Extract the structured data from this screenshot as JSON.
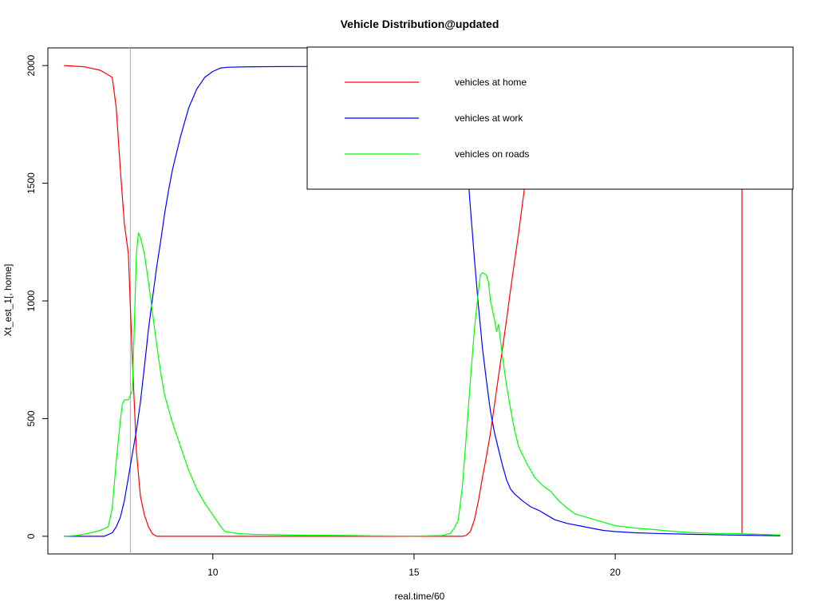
{
  "chart_data": {
    "type": "line",
    "title": "Vehicle Distribution@updated",
    "xlabel": "real.time/60",
    "ylabel": "Xt_est_1[, home]",
    "xlim": [
      5.9,
      24.4
    ],
    "ylim": [
      -75,
      2075
    ],
    "xticks": [
      10,
      15,
      20
    ],
    "yticks": [
      0,
      500,
      1000,
      1500,
      2000
    ],
    "grid": false,
    "legend_position": "top-right",
    "vline_x": 7.95,
    "series": [
      {
        "name": "vehicles at home",
        "color": "#ff0000",
        "points": [
          [
            6.3,
            2000
          ],
          [
            6.8,
            1995
          ],
          [
            7.2,
            1980
          ],
          [
            7.5,
            1950
          ],
          [
            7.6,
            1820
          ],
          [
            7.7,
            1560
          ],
          [
            7.8,
            1330
          ],
          [
            7.9,
            1200
          ],
          [
            8.0,
            750
          ],
          [
            8.1,
            360
          ],
          [
            8.2,
            170
          ],
          [
            8.3,
            90
          ],
          [
            8.4,
            40
          ],
          [
            8.5,
            10
          ],
          [
            8.6,
            0
          ],
          [
            16.2,
            0
          ],
          [
            16.3,
            4
          ],
          [
            16.4,
            20
          ],
          [
            16.5,
            70
          ],
          [
            16.6,
            150
          ],
          [
            16.7,
            250
          ],
          [
            16.8,
            340
          ],
          [
            16.9,
            440
          ],
          [
            17.0,
            560
          ],
          [
            17.1,
            680
          ],
          [
            17.2,
            800
          ],
          [
            17.3,
            920
          ],
          [
            17.4,
            1050
          ],
          [
            17.5,
            1170
          ],
          [
            17.6,
            1290
          ],
          [
            17.7,
            1420
          ],
          [
            17.8,
            1550
          ],
          [
            17.85,
            1610
          ],
          [
            23.15,
            1610
          ],
          [
            23.15,
            10
          ],
          [
            24.1,
            5
          ]
        ]
      },
      {
        "name": "vehicles at work",
        "color": "#0000ff",
        "points": [
          [
            6.3,
            0
          ],
          [
            7.3,
            0
          ],
          [
            7.5,
            15
          ],
          [
            7.6,
            40
          ],
          [
            7.7,
            80
          ],
          [
            7.8,
            150
          ],
          [
            7.9,
            250
          ],
          [
            8.0,
            350
          ],
          [
            8.1,
            450
          ],
          [
            8.2,
            570
          ],
          [
            8.3,
            720
          ],
          [
            8.4,
            880
          ],
          [
            8.5,
            1010
          ],
          [
            8.6,
            1140
          ],
          [
            8.7,
            1250
          ],
          [
            8.8,
            1370
          ],
          [
            8.9,
            1470
          ],
          [
            9.0,
            1560
          ],
          [
            9.2,
            1700
          ],
          [
            9.4,
            1820
          ],
          [
            9.6,
            1900
          ],
          [
            9.8,
            1950
          ],
          [
            10.0,
            1975
          ],
          [
            10.2,
            1990
          ],
          [
            10.4,
            1993
          ],
          [
            11.0,
            1995
          ],
          [
            12.0,
            1996
          ],
          [
            16.1,
            1996
          ],
          [
            16.2,
            1860
          ],
          [
            16.3,
            1620
          ],
          [
            16.4,
            1400
          ],
          [
            16.5,
            1180
          ],
          [
            16.6,
            980
          ],
          [
            16.7,
            800
          ],
          [
            16.8,
            660
          ],
          [
            16.9,
            530
          ],
          [
            17.0,
            440
          ],
          [
            17.1,
            370
          ],
          [
            17.2,
            300
          ],
          [
            17.3,
            240
          ],
          [
            17.4,
            200
          ],
          [
            17.5,
            180
          ],
          [
            17.7,
            150
          ],
          [
            17.9,
            125
          ],
          [
            18.1,
            110
          ],
          [
            18.3,
            90
          ],
          [
            18.5,
            70
          ],
          [
            18.8,
            55
          ],
          [
            19.1,
            45
          ],
          [
            19.4,
            35
          ],
          [
            19.7,
            25
          ],
          [
            20.0,
            20
          ],
          [
            20.5,
            15
          ],
          [
            21.0,
            12
          ],
          [
            22.0,
            8
          ],
          [
            23.0,
            5
          ],
          [
            24.1,
            2
          ]
        ]
      },
      {
        "name": "vehicles on roads",
        "color": "#00ff00",
        "points": [
          [
            6.3,
            0
          ],
          [
            6.6,
            3
          ],
          [
            6.9,
            12
          ],
          [
            7.2,
            25
          ],
          [
            7.4,
            40
          ],
          [
            7.5,
            120
          ],
          [
            7.6,
            320
          ],
          [
            7.7,
            490
          ],
          [
            7.75,
            560
          ],
          [
            7.8,
            580
          ],
          [
            7.9,
            580
          ],
          [
            8.0,
            620
          ],
          [
            8.05,
            900
          ],
          [
            8.1,
            1200
          ],
          [
            8.15,
            1290
          ],
          [
            8.2,
            1270
          ],
          [
            8.3,
            1200
          ],
          [
            8.4,
            1080
          ],
          [
            8.5,
            950
          ],
          [
            8.6,
            820
          ],
          [
            8.7,
            700
          ],
          [
            8.8,
            600
          ],
          [
            9.0,
            480
          ],
          [
            9.2,
            380
          ],
          [
            9.4,
            280
          ],
          [
            9.6,
            200
          ],
          [
            9.8,
            140
          ],
          [
            10.0,
            90
          ],
          [
            10.2,
            40
          ],
          [
            10.3,
            20
          ],
          [
            10.6,
            12
          ],
          [
            11.0,
            8
          ],
          [
            12.0,
            5
          ],
          [
            13.0,
            4
          ],
          [
            14.0,
            2
          ],
          [
            15.0,
            1
          ],
          [
            15.7,
            3
          ],
          [
            15.9,
            12
          ],
          [
            16.0,
            35
          ],
          [
            16.1,
            70
          ],
          [
            16.2,
            210
          ],
          [
            16.3,
            430
          ],
          [
            16.4,
            660
          ],
          [
            16.5,
            880
          ],
          [
            16.6,
            1040
          ],
          [
            16.65,
            1110
          ],
          [
            16.7,
            1120
          ],
          [
            16.8,
            1110
          ],
          [
            16.85,
            1080
          ],
          [
            16.9,
            1000
          ],
          [
            17.0,
            920
          ],
          [
            17.05,
            870
          ],
          [
            17.1,
            900
          ],
          [
            17.2,
            760
          ],
          [
            17.3,
            640
          ],
          [
            17.4,
            540
          ],
          [
            17.5,
            450
          ],
          [
            17.6,
            380
          ],
          [
            17.8,
            310
          ],
          [
            18.0,
            250
          ],
          [
            18.2,
            215
          ],
          [
            18.4,
            190
          ],
          [
            18.6,
            150
          ],
          [
            18.8,
            120
          ],
          [
            19.0,
            95
          ],
          [
            19.2,
            85
          ],
          [
            19.5,
            70
          ],
          [
            19.8,
            55
          ],
          [
            20.0,
            45
          ],
          [
            20.5,
            35
          ],
          [
            21.0,
            28
          ],
          [
            21.5,
            20
          ],
          [
            22.0,
            15
          ],
          [
            22.5,
            12
          ],
          [
            23.0,
            12
          ],
          [
            23.15,
            10
          ],
          [
            24.1,
            5
          ]
        ]
      }
    ]
  }
}
